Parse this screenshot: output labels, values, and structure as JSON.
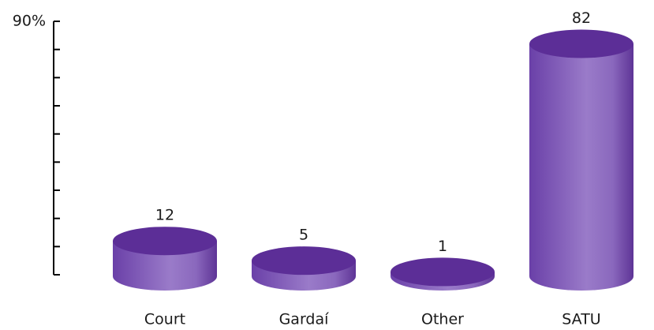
{
  "chart_data": {
    "type": "bar",
    "style": "cylinder",
    "categories": [
      "Court",
      "Gardaí",
      "Other",
      "SATU"
    ],
    "values": [
      12,
      5,
      1,
      82
    ],
    "color": "#6a3fa6",
    "ylim": [
      0,
      90
    ],
    "yticks": [
      {
        "value": 90,
        "label": "90%"
      }
    ],
    "minor_yticks": [
      0,
      10,
      20,
      30,
      40,
      50,
      60,
      70,
      80
    ]
  }
}
